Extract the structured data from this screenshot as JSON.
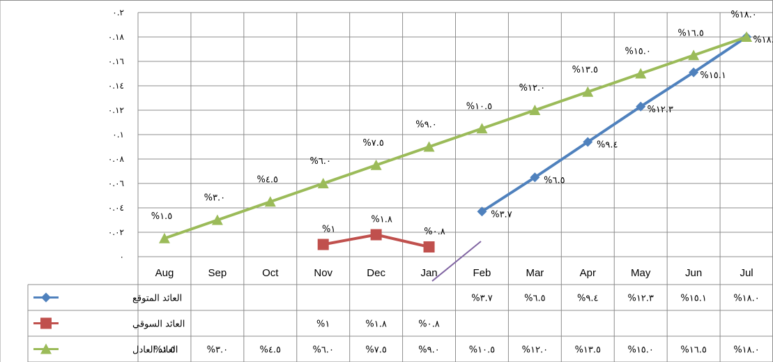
{
  "chart_data": {
    "type": "line",
    "categories": [
      "Aug",
      "Sep",
      "Oct",
      "Nov",
      "Dec",
      "Jan",
      "Feb",
      "Mar",
      "Apr",
      "May",
      "Jun",
      "Jul"
    ],
    "yticks": [
      "٠",
      "٠.٠٢",
      "٠.٠٤",
      "٠.٠٦",
      "٠.٠٨",
      "٠.١",
      "٠.١٢",
      "٠.١٤",
      "٠.١٦",
      "٠.١٨",
      "٠.٢"
    ],
    "ylim": [
      0,
      0.2
    ],
    "grid": true,
    "legend": "data-table",
    "series": [
      {
        "name": "العائد المتوقع",
        "color": "#4F81BD",
        "marker": "diamond",
        "values": [
          null,
          null,
          null,
          null,
          null,
          null,
          0.037,
          0.065,
          0.094,
          0.123,
          0.151,
          0.18
        ],
        "labels": [
          "",
          "",
          "",
          "",
          "",
          "",
          "%٣.٧",
          "%٦.٥",
          "%٩.٤",
          "%١٢.٣",
          "%١٥.١",
          "%١٨.٠"
        ]
      },
      {
        "name": "العائد السوقي",
        "color": "#C0504D",
        "marker": "square",
        "values": [
          null,
          null,
          null,
          0.01,
          0.018,
          0.008,
          null,
          null,
          null,
          null,
          null,
          null
        ],
        "labels": [
          "",
          "",
          "",
          "%١",
          "%١.٨",
          "%٠.٨",
          "",
          "",
          "",
          "",
          "",
          ""
        ]
      },
      {
        "name": "العائد العادل",
        "color": "#9BBB59",
        "marker": "triangle",
        "values": [
          0.015,
          0.03,
          0.045,
          0.06,
          0.075,
          0.09,
          0.105,
          0.12,
          0.135,
          0.15,
          0.165,
          0.18
        ],
        "labels": [
          "%١.٥",
          "%٣.٠",
          "%٤.٥",
          "%٦.٠",
          "%٧.٥",
          "%٩.٠",
          "%١٠.٥",
          "%١٢.٠",
          "%١٣.٥",
          "%١٥.٠",
          "%١٦.٥",
          "%١٨.٠"
        ]
      }
    ],
    "annotation_line_color": "#8064A2"
  }
}
